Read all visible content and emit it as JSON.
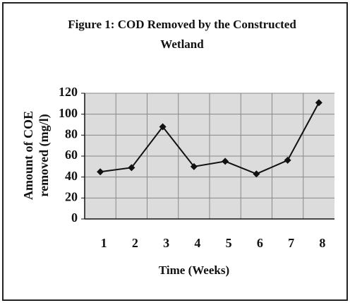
{
  "chart_data": {
    "type": "line",
    "title": [
      "Figure 1: COD Removed by the Constructed",
      "Wetland"
    ],
    "y_label": [
      "Amount of COE",
      "removed (mg/l)"
    ],
    "x_label": "Time (Weeks)",
    "categories": [
      "1",
      "2",
      "3",
      "4",
      "5",
      "6",
      "7",
      "8"
    ],
    "series": [
      {
        "color": "#111111",
        "values": [
          45,
          49,
          88,
          50,
          55,
          43,
          56,
          111
        ]
      }
    ],
    "ylim": [
      0,
      120
    ],
    "yticks": [
      0,
      20,
      40,
      60,
      80,
      100,
      120
    ],
    "grid": true
  }
}
